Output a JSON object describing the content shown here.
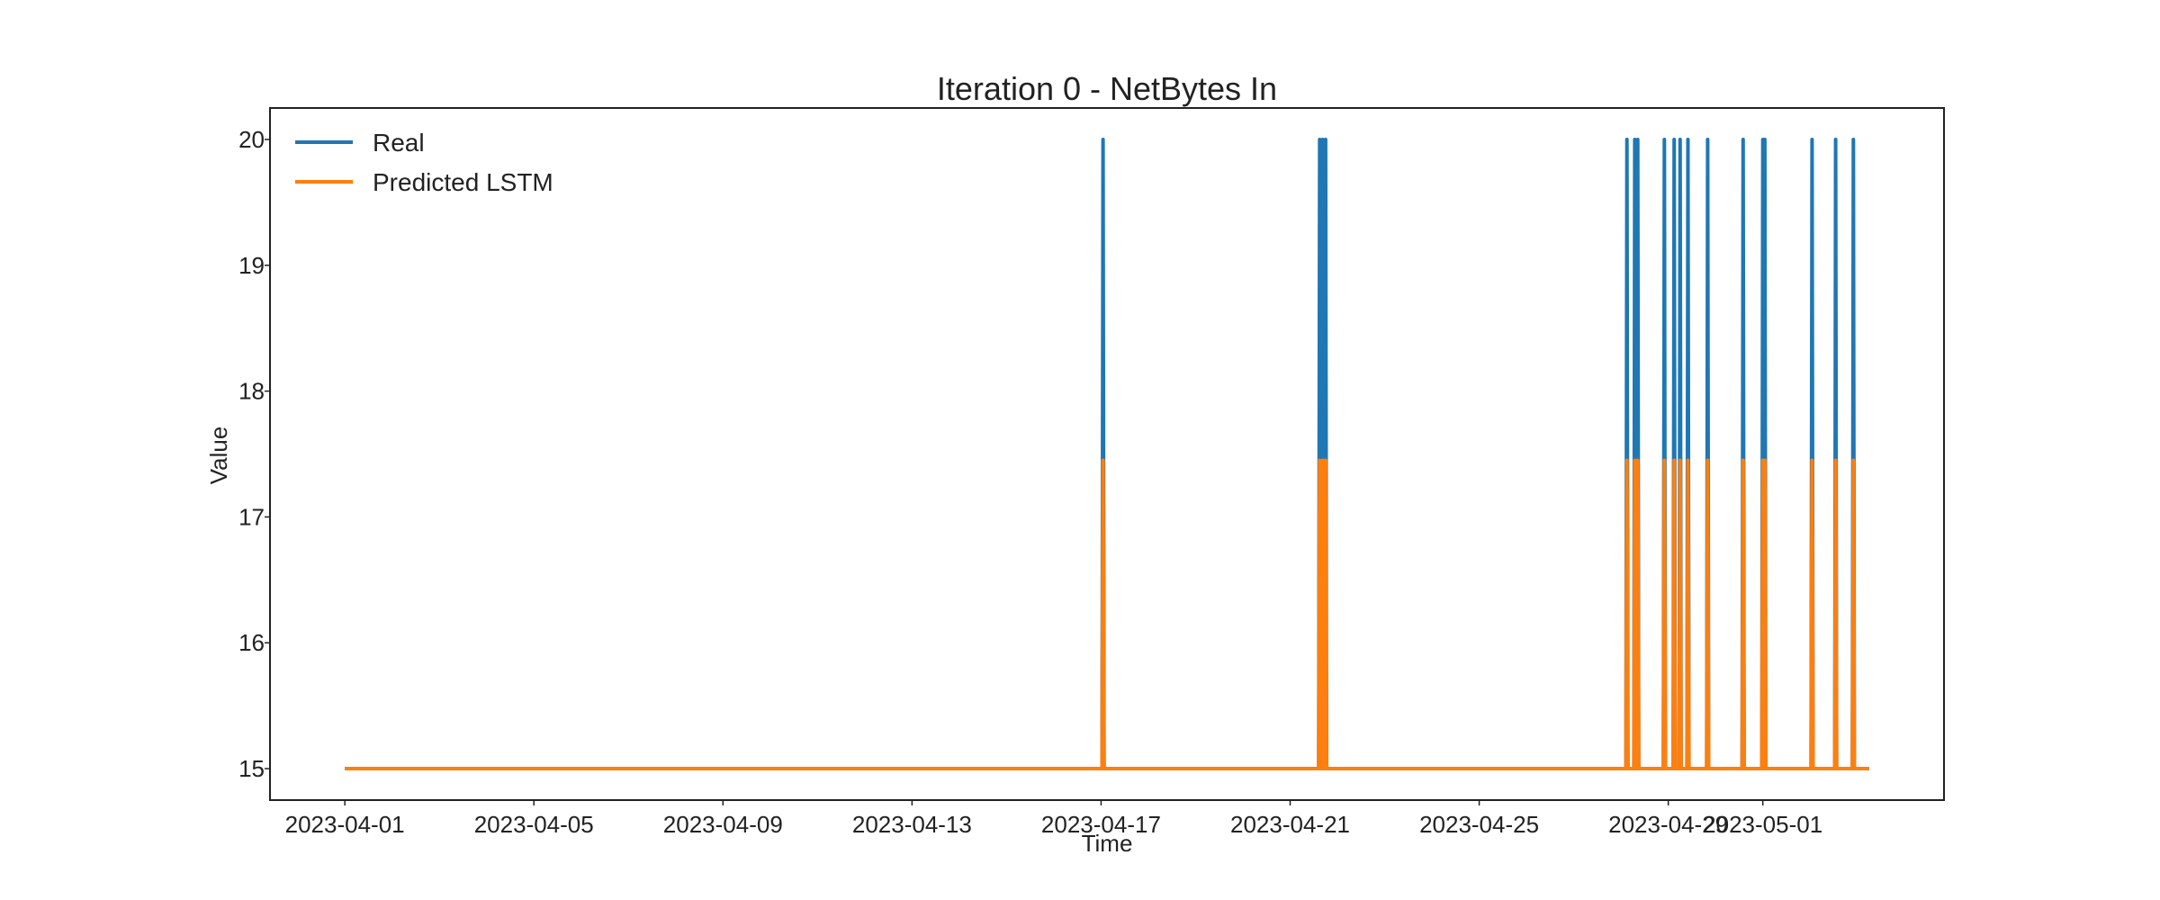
{
  "chart_data": {
    "type": "line",
    "title": "Iteration 0 - NetBytes In",
    "xlabel": "Time",
    "ylabel": "Value",
    "x_ticks": [
      "2023-04-01",
      "2023-04-05",
      "2023-04-09",
      "2023-04-13",
      "2023-04-17",
      "2023-04-21",
      "2023-04-25",
      "2023-04-29",
      "2023-05-01"
    ],
    "y_ticks": [
      15,
      16,
      17,
      18,
      19,
      20
    ],
    "xlim": [
      "2023-03-30T10:00",
      "2023-05-04T20:00"
    ],
    "ylim": [
      14.75,
      20.25
    ],
    "grid": false,
    "legend_position": "top-left",
    "baseline": 15,
    "series": [
      {
        "name": "Real",
        "color": "#1f77b4",
        "peak": 20,
        "spikes": [
          "2023-04-17T01:00",
          "2023-04-21T15:00",
          "2023-04-21T16:30",
          "2023-04-21T18:00",
          "2023-04-28T03:00",
          "2023-04-28T07:00",
          "2023-04-28T08:30",
          "2023-04-28T22:00",
          "2023-04-29T03:00",
          "2023-04-29T06:00",
          "2023-04-29T10:00",
          "2023-04-29T20:00",
          "2023-04-30T14:00",
          "2023-05-01T00:00",
          "2023-05-01T01:00",
          "2023-05-02T01:00",
          "2023-05-02T13:00",
          "2023-05-02T22:00"
        ]
      },
      {
        "name": "Predicted LSTM",
        "color": "#ff7f0e",
        "peak": 17.45,
        "spikes": [
          "2023-04-17T01:00",
          "2023-04-21T15:00",
          "2023-04-21T16:30",
          "2023-04-21T18:00",
          "2023-04-28T03:00",
          "2023-04-28T07:00",
          "2023-04-28T08:30",
          "2023-04-28T22:00",
          "2023-04-29T03:00",
          "2023-04-29T06:00",
          "2023-04-29T10:00",
          "2023-04-29T20:00",
          "2023-04-30T14:00",
          "2023-05-01T00:00",
          "2023-05-01T01:00",
          "2023-05-02T01:00",
          "2023-05-02T13:00",
          "2023-05-02T22:00"
        ]
      }
    ],
    "x_range": [
      "2023-04-01T00:00",
      "2023-05-03T06:00"
    ]
  }
}
